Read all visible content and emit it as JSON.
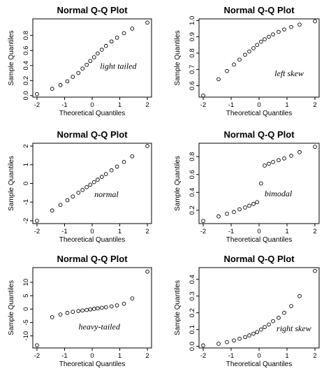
{
  "chart_data": [
    {
      "type": "scatter",
      "title": "Normal Q-Q Plot",
      "xlabel": "Theoretical Quantiles",
      "ylabel": "Sample Quantiles",
      "annotation": "light tailed",
      "xlim": [
        -2.15,
        2.15
      ],
      "ylim": [
        -0.02,
        1.02
      ],
      "xticks": [
        -2,
        -1,
        0,
        1,
        2
      ],
      "yticks": [
        0.0,
        0.2,
        0.4,
        0.6,
        0.8
      ],
      "ytick_labels": [
        "0.0",
        "0.2",
        "0.4",
        "0.6",
        "0.8"
      ],
      "series": [
        {
          "x": [
            -2.0,
            -1.45,
            -1.15,
            -0.9,
            -0.7,
            -0.5,
            -0.35,
            -0.2,
            -0.07,
            0.07,
            0.2,
            0.35,
            0.5,
            0.7,
            0.9,
            1.15,
            1.45,
            2.0
          ],
          "y": [
            0.02,
            0.09,
            0.14,
            0.19,
            0.25,
            0.3,
            0.36,
            0.41,
            0.46,
            0.51,
            0.56,
            0.61,
            0.66,
            0.72,
            0.77,
            0.83,
            0.89,
            0.97
          ]
        }
      ]
    },
    {
      "type": "scatter",
      "title": "Normal Q-Q Plot",
      "xlabel": "Theoretical Quantiles",
      "ylabel": "Sample Quantiles",
      "annotation": "left skew",
      "xlim": [
        -2.15,
        2.15
      ],
      "ylim": [
        0.53,
        1.01
      ],
      "xticks": [
        -2,
        -1,
        0,
        1,
        2
      ],
      "yticks": [
        0.6,
        0.7,
        0.8,
        0.9,
        1.0
      ],
      "ytick_labels": [
        "0.6",
        "0.7",
        "0.8",
        "0.9",
        "1.0"
      ],
      "series": [
        {
          "x": [
            -2.0,
            -1.45,
            -1.15,
            -0.9,
            -0.7,
            -0.5,
            -0.35,
            -0.2,
            -0.07,
            0.07,
            0.2,
            0.35,
            0.5,
            0.7,
            0.9,
            1.15,
            1.45,
            2.0
          ],
          "y": [
            0.54,
            0.64,
            0.69,
            0.73,
            0.76,
            0.79,
            0.81,
            0.83,
            0.85,
            0.87,
            0.885,
            0.9,
            0.915,
            0.93,
            0.945,
            0.96,
            0.975,
            0.995
          ]
        }
      ]
    },
    {
      "type": "scatter",
      "title": "Normal Q-Q Plot",
      "xlabel": "Theoretical Quantiles",
      "ylabel": "Sample Quantiles",
      "annotation": "normal",
      "xlim": [
        -2.15,
        2.15
      ],
      "ylim": [
        -2.15,
        2.15
      ],
      "xticks": [
        -2,
        -1,
        0,
        1,
        2
      ],
      "yticks": [
        -2,
        -1,
        0,
        1,
        2
      ],
      "ytick_labels": [
        "-2",
        "-1",
        "0",
        "1",
        "2"
      ],
      "series": [
        {
          "x": [
            -2.0,
            -1.45,
            -1.15,
            -0.9,
            -0.7,
            -0.5,
            -0.35,
            -0.2,
            -0.07,
            0.07,
            0.2,
            0.35,
            0.5,
            0.7,
            0.9,
            1.15,
            1.45,
            2.0
          ],
          "y": [
            -2.0,
            -1.45,
            -1.15,
            -0.9,
            -0.7,
            -0.5,
            -0.35,
            -0.2,
            -0.07,
            0.07,
            0.2,
            0.35,
            0.5,
            0.7,
            0.9,
            1.15,
            1.45,
            2.0
          ]
        }
      ]
    },
    {
      "type": "scatter",
      "title": "Normal Q-Q Plot",
      "xlabel": "Theoretical Quantiles",
      "ylabel": "Sample Quantiles",
      "annotation": "bimodal",
      "xlim": [
        -2.15,
        2.15
      ],
      "ylim": [
        0.05,
        0.95
      ],
      "xticks": [
        -2,
        -1,
        0,
        1,
        2
      ],
      "yticks": [
        0.2,
        0.4,
        0.6,
        0.8
      ],
      "ytick_labels": [
        "0.2",
        "0.4",
        "0.6",
        "0.8"
      ],
      "series": [
        {
          "x": [
            -2.0,
            -1.45,
            -1.15,
            -0.9,
            -0.7,
            -0.5,
            -0.35,
            -0.2,
            -0.07,
            0.07,
            0.2,
            0.35,
            0.5,
            0.7,
            0.9,
            1.15,
            1.45,
            2.0
          ],
          "y": [
            0.08,
            0.13,
            0.16,
            0.18,
            0.21,
            0.23,
            0.25,
            0.27,
            0.29,
            0.5,
            0.7,
            0.72,
            0.74,
            0.76,
            0.78,
            0.81,
            0.85,
            0.91
          ]
        }
      ]
    },
    {
      "type": "scatter",
      "title": "Normal Q-Q Plot",
      "xlabel": "Theoretical Quantiles",
      "ylabel": "Sample Quantiles",
      "annotation": "heavy-tailed",
      "xlim": [
        -2.15,
        2.15
      ],
      "ylim": [
        -14.5,
        15.5
      ],
      "xticks": [
        -2,
        -1,
        0,
        1,
        2
      ],
      "yticks": [
        -10,
        -5,
        0,
        5,
        10
      ],
      "ytick_labels": [
        "-10",
        "-5",
        "0",
        "5",
        "10"
      ],
      "series": [
        {
          "x": [
            -2.0,
            -1.45,
            -1.15,
            -0.9,
            -0.7,
            -0.5,
            -0.35,
            -0.2,
            -0.07,
            0.07,
            0.2,
            0.35,
            0.5,
            0.7,
            0.9,
            1.15,
            1.45,
            2.0
          ],
          "y": [
            -13.5,
            -3.0,
            -2.0,
            -1.4,
            -1.0,
            -0.7,
            -0.5,
            -0.3,
            -0.1,
            0.1,
            0.3,
            0.5,
            0.7,
            1.0,
            1.4,
            2.0,
            4.0,
            14.0
          ]
        }
      ]
    },
    {
      "type": "scatter",
      "title": "Normal Q-Q Plot",
      "xlabel": "Theoretical Quantiles",
      "ylabel": "Sample Quantiles",
      "annotation": "right skew",
      "xlim": [
        -2.15,
        2.15
      ],
      "ylim": [
        -0.01,
        0.47
      ],
      "xticks": [
        -2,
        -1,
        0,
        1,
        2
      ],
      "yticks": [
        0.0,
        0.1,
        0.2,
        0.3,
        0.4
      ],
      "ytick_labels": [
        "0.0",
        "0.1",
        "0.2",
        "0.3",
        "0.4"
      ],
      "series": [
        {
          "x": [
            -2.0,
            -1.45,
            -1.15,
            -0.9,
            -0.7,
            -0.5,
            -0.35,
            -0.2,
            -0.07,
            0.07,
            0.2,
            0.35,
            0.5,
            0.7,
            0.9,
            1.15,
            1.45,
            2.0
          ],
          "y": [
            0.005,
            0.015,
            0.025,
            0.035,
            0.045,
            0.055,
            0.065,
            0.075,
            0.085,
            0.1,
            0.115,
            0.13,
            0.15,
            0.17,
            0.2,
            0.24,
            0.3,
            0.45
          ]
        }
      ]
    }
  ]
}
